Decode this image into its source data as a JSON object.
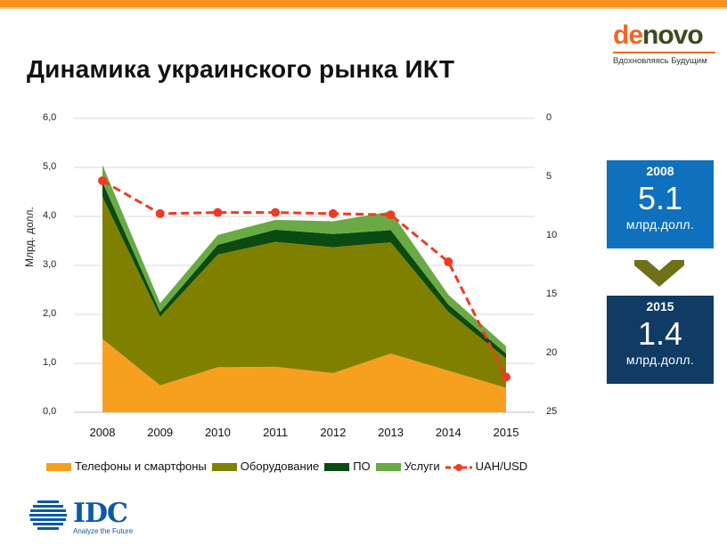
{
  "header": {
    "title": "Динамика украинского рынка ИКТ",
    "brand_color": "#f7941d"
  },
  "logo": {
    "part1": "de",
    "part2": "novo",
    "tagline": "Вдохновляясь Будущим"
  },
  "summary": {
    "box1": {
      "year": "2008",
      "value": "5.1",
      "unit": "млрд.долл.",
      "color": "#0f70bd"
    },
    "box2": {
      "year": "2015",
      "value": "1.4",
      "unit": "млрд.долл.",
      "color": "#0f3b64"
    }
  },
  "footer": {
    "idc_name": "IDC",
    "idc_tagline": "Analyze the Future"
  },
  "chart_data": {
    "type": "area",
    "stacked": true,
    "title": "",
    "xlabel": "",
    "ylabel": "Млрд. долл.",
    "categories": [
      "2008",
      "2009",
      "2010",
      "2011",
      "2012",
      "2013",
      "2014",
      "2015"
    ],
    "ylim": [
      0,
      6
    ],
    "yticks": [
      "0,0",
      "1,0",
      "2,0",
      "3,0",
      "4,0",
      "5,0",
      "6,0"
    ],
    "y2lim": [
      0,
      25
    ],
    "y2_inverted": true,
    "y2ticks": [
      "0",
      "5",
      "10",
      "15",
      "20",
      "25"
    ],
    "series": [
      {
        "name": "Телефоны и смартфоны",
        "color": "#f7a020",
        "values": [
          1.5,
          0.55,
          0.92,
          0.93,
          0.8,
          1.2,
          0.85,
          0.5
        ]
      },
      {
        "name": "Оборудование",
        "color": "#808000",
        "values": [
          2.9,
          1.4,
          2.3,
          2.55,
          2.57,
          2.27,
          1.2,
          0.6
        ]
      },
      {
        "name": "ПО",
        "color": "#0b4a10",
        "values": [
          0.3,
          0.1,
          0.2,
          0.25,
          0.27,
          0.25,
          0.15,
          0.1
        ]
      },
      {
        "name": "Услуги",
        "color": "#6aaa44",
        "values": [
          0.35,
          0.18,
          0.2,
          0.2,
          0.26,
          0.38,
          0.2,
          0.15
        ]
      }
    ],
    "line_series": {
      "name": "UAH/USD",
      "axis": "secondary",
      "color": "#ef3b24",
      "values": [
        5.3,
        8.1,
        8.0,
        8.0,
        8.1,
        8.2,
        12.2,
        22.0
      ]
    },
    "legend_position": "bottom"
  }
}
